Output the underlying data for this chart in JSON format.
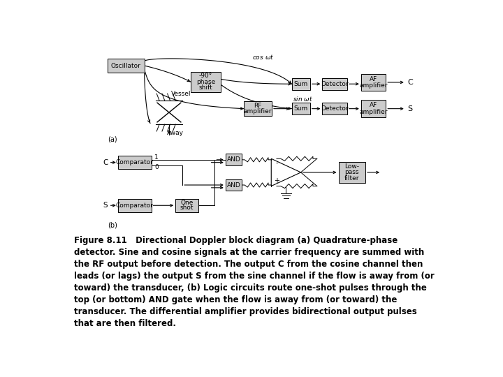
{
  "bg_color": "#ffffff",
  "box_fill": "#cccccc",
  "box_edge": "#000000",
  "text_color": "#000000",
  "caption_line1": "Figure 8.11   Directional Doppler block diagram (a) Quadrature-phase",
  "caption_line2": "detector. Sine and cosine signals at the carrier frequency are summed with",
  "caption_line3": "the RF output before detection. The output C from the cosine channel then",
  "caption_line4": "leads (or lags) the output S from the sine channel if the flow is away from (or",
  "caption_line5": "toward) the transducer, (b) Logic circuits route one-shot pulses through the",
  "caption_line6": "top (or bottom) AND gate when the flow is away from (or toward) the",
  "caption_line7": "transducer. The differential amplifier provides bidirectional output pulses",
  "caption_line8": "that are then filtered.",
  "diag_a_label": "(a)",
  "diag_b_label": "(b)"
}
